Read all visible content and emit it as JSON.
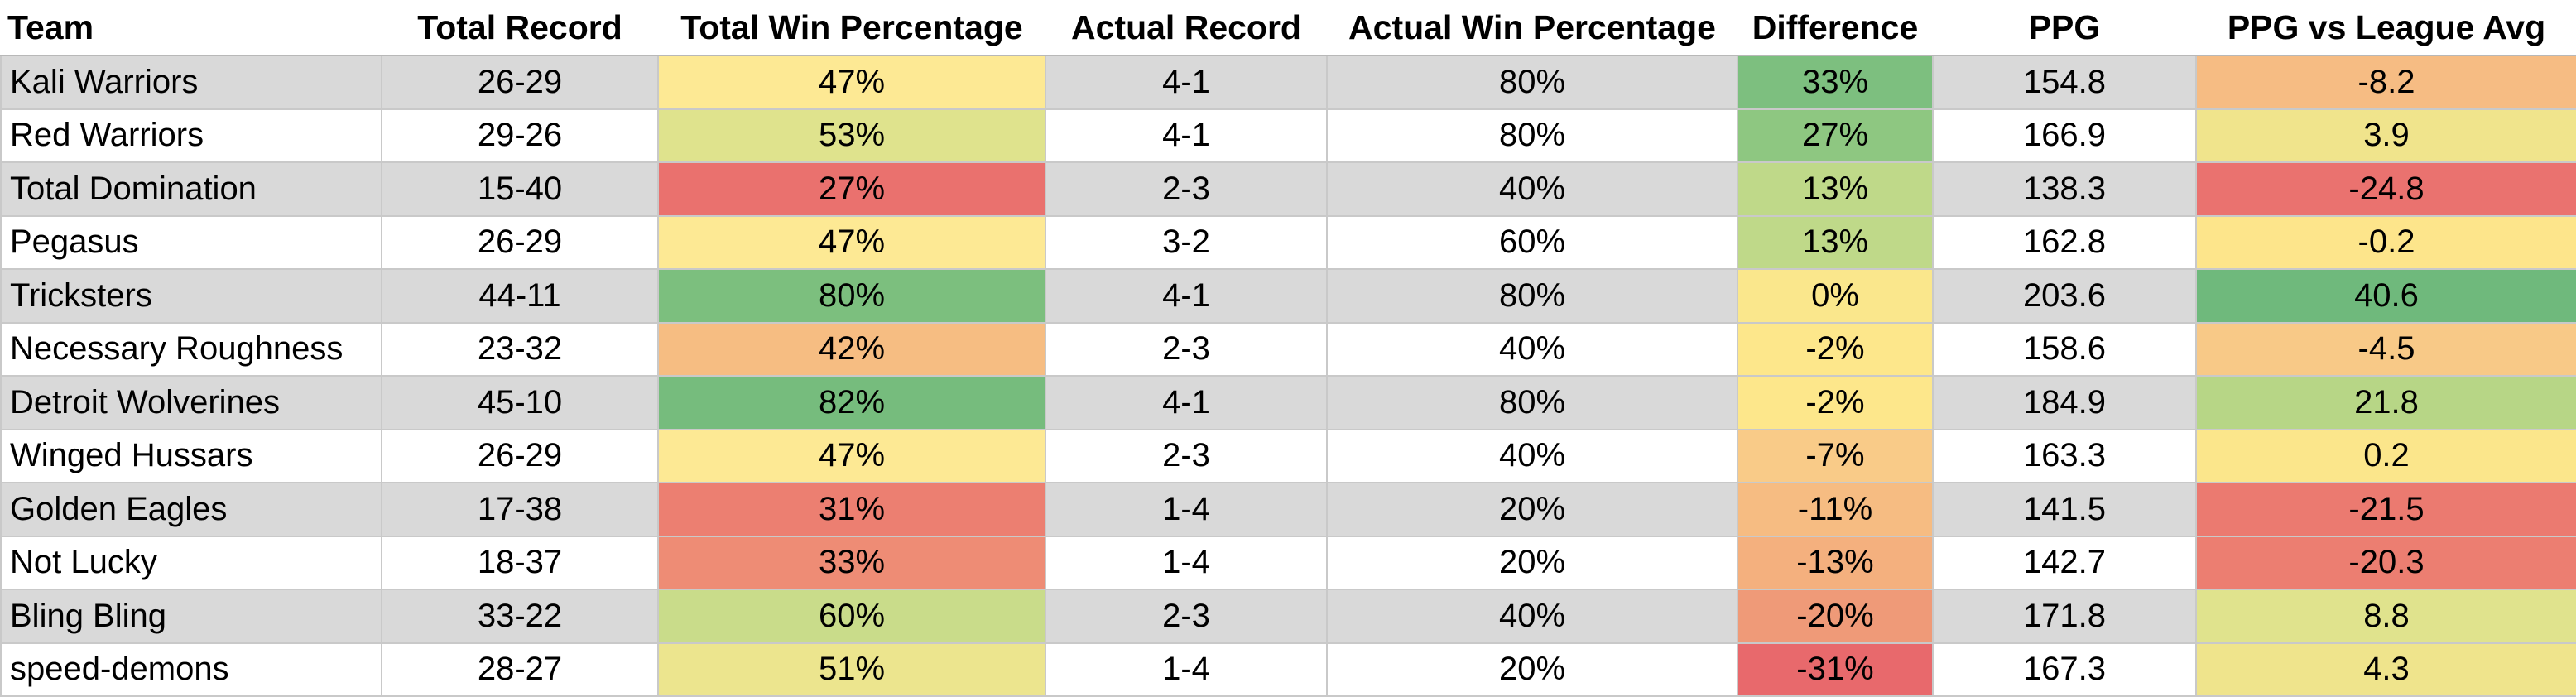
{
  "headers": [
    "Team",
    "Total Record",
    "Total Win Percentage",
    "Actual Record",
    "Actual Win Percentage",
    "Difference",
    "PPG",
    "PPG vs League Avg"
  ],
  "rows": [
    {
      "team": "Kali Warriors",
      "total_record": "26-29",
      "total_win_pct": "47%",
      "actual_record": "4-1",
      "actual_win_pct": "80%",
      "difference": "33%",
      "ppg": "154.8",
      "ppg_vs_avg": "-8.2",
      "colors": {
        "total_win_pct": "#fde994",
        "difference": "#7dbf7f",
        "ppg_vs_avg": "#f6bc83"
      }
    },
    {
      "team": "Red Warriors",
      "total_record": "29-26",
      "total_win_pct": "53%",
      "actual_record": "4-1",
      "actual_win_pct": "80%",
      "difference": "27%",
      "ppg": "166.9",
      "ppg_vs_avg": "3.9",
      "colors": {
        "total_win_pct": "#dfe38d",
        "difference": "#8ec781",
        "ppg_vs_avg": "#f0e48c"
      }
    },
    {
      "team": "Total Domination",
      "total_record": "15-40",
      "total_win_pct": "27%",
      "actual_record": "2-3",
      "actual_win_pct": "40%",
      "difference": "13%",
      "ppg": "138.3",
      "ppg_vs_avg": "-24.8",
      "colors": {
        "total_win_pct": "#ea716e",
        "difference": "#bfd989",
        "ppg_vs_avg": "#ea726f"
      }
    },
    {
      "team": "Pegasus",
      "total_record": "26-29",
      "total_win_pct": "47%",
      "actual_record": "3-2",
      "actual_win_pct": "60%",
      "difference": "13%",
      "ppg": "162.8",
      "ppg_vs_avg": "-0.2",
      "colors": {
        "total_win_pct": "#fde994",
        "difference": "#bfd989",
        "ppg_vs_avg": "#fde58b"
      }
    },
    {
      "team": "Tricksters",
      "total_record": "44-11",
      "total_win_pct": "80%",
      "actual_record": "4-1",
      "actual_win_pct": "80%",
      "difference": "0%",
      "ppg": "203.6",
      "ppg_vs_avg": "40.6",
      "colors": {
        "total_win_pct": "#7cbf7e",
        "difference": "#fae78c",
        "ppg_vs_avg": "#6fb97c"
      }
    },
    {
      "team": "Necessary Roughness",
      "total_record": "23-32",
      "total_win_pct": "42%",
      "actual_record": "2-3",
      "actual_win_pct": "40%",
      "difference": "-2%",
      "ppg": "158.6",
      "ppg_vs_avg": "-4.5",
      "colors": {
        "total_win_pct": "#f6bd82",
        "difference": "#fde78b",
        "ppg_vs_avg": "#f8c987"
      }
    },
    {
      "team": "Detroit Wolverines",
      "total_record": "45-10",
      "total_win_pct": "82%",
      "actual_record": "4-1",
      "actual_win_pct": "80%",
      "difference": "-2%",
      "ppg": "184.9",
      "ppg_vs_avg": "21.8",
      "colors": {
        "total_win_pct": "#76bc7d",
        "difference": "#fde78b",
        "ppg_vs_avg": "#b7d686"
      }
    },
    {
      "team": "Winged Hussars",
      "total_record": "26-29",
      "total_win_pct": "47%",
      "actual_record": "2-3",
      "actual_win_pct": "40%",
      "difference": "-7%",
      "ppg": "163.3",
      "ppg_vs_avg": "0.2",
      "colors": {
        "total_win_pct": "#fde994",
        "difference": "#f9cb88",
        "ppg_vs_avg": "#fbe68b"
      }
    },
    {
      "team": "Golden Eagles",
      "total_record": "17-38",
      "total_win_pct": "31%",
      "actual_record": "1-4",
      "actual_win_pct": "20%",
      "difference": "-11%",
      "ppg": "141.5",
      "ppg_vs_avg": "-21.5",
      "colors": {
        "total_win_pct": "#ec7f71",
        "difference": "#f6bc82",
        "ppg_vs_avg": "#eb7a70"
      }
    },
    {
      "team": "Not Lucky",
      "total_record": "18-37",
      "total_win_pct": "33%",
      "actual_record": "1-4",
      "actual_win_pct": "20%",
      "difference": "-13%",
      "ppg": "142.7",
      "ppg_vs_avg": "-20.3",
      "colors": {
        "total_win_pct": "#ee8c75",
        "difference": "#f4b07e",
        "ppg_vs_avg": "#ec7e71"
      }
    },
    {
      "team": "Bling Bling",
      "total_record": "33-22",
      "total_win_pct": "60%",
      "actual_record": "2-3",
      "actual_win_pct": "40%",
      "difference": "-20%",
      "ppg": "171.8",
      "ppg_vs_avg": "8.8",
      "colors": {
        "total_win_pct": "#c9dc8a",
        "difference": "#ef9a78",
        "ppg_vs_avg": "#e0e38d"
      }
    },
    {
      "team": "speed-demons",
      "total_record": "28-27",
      "total_win_pct": "51%",
      "actual_record": "1-4",
      "actual_win_pct": "20%",
      "difference": "-31%",
      "ppg": "167.3",
      "ppg_vs_avg": "4.3",
      "colors": {
        "total_win_pct": "#ece58e",
        "difference": "#e8696c",
        "ppg_vs_avg": "#efe48c"
      }
    }
  ]
}
